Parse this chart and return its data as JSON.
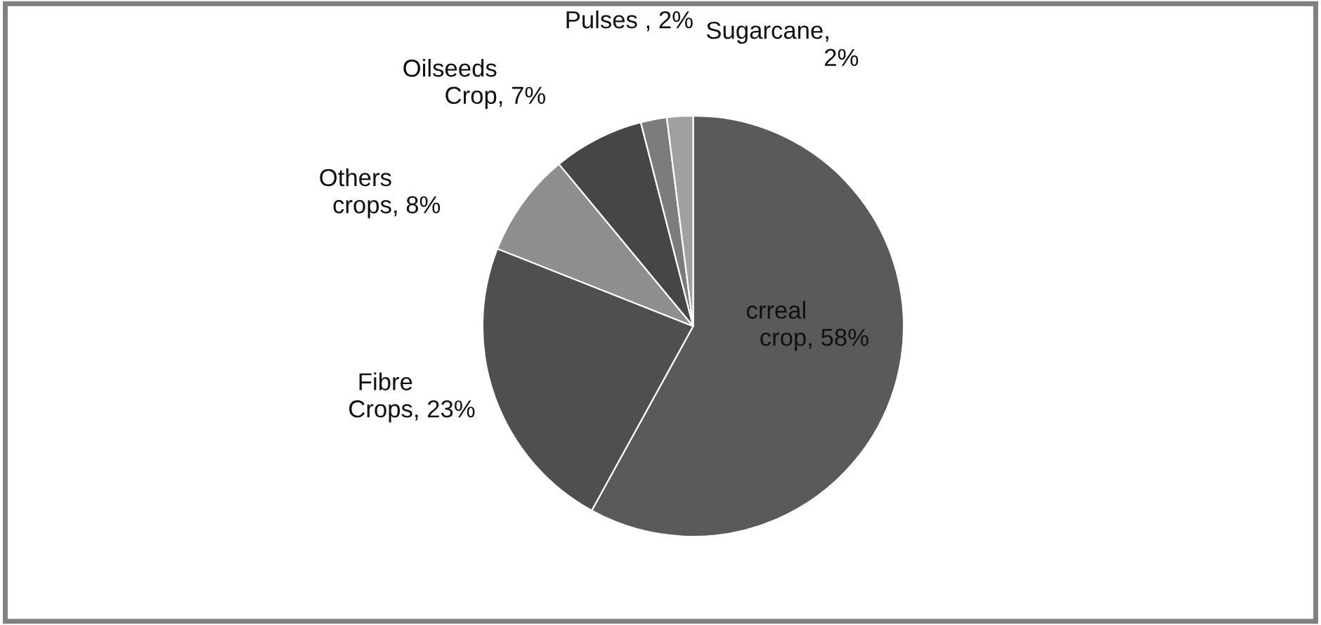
{
  "chart_data": {
    "type": "pie",
    "categories": [
      "crreal crop",
      "Fibre Crops",
      "Others crops",
      "Oilseeds Crop",
      "Pulses ",
      "Sugarcane"
    ],
    "values": [
      58,
      23,
      8,
      7,
      2,
      2
    ],
    "colors": [
      "#5a5a5a",
      "#4f4f4f",
      "#8e8e8e",
      "#464646",
      "#7c7c7c",
      "#a0a0a0"
    ],
    "value_labels": [
      ", 58%",
      ", 23%",
      ", 8%",
      ", 7%",
      ", 2%",
      ",\n2%"
    ],
    "legend": false
  }
}
